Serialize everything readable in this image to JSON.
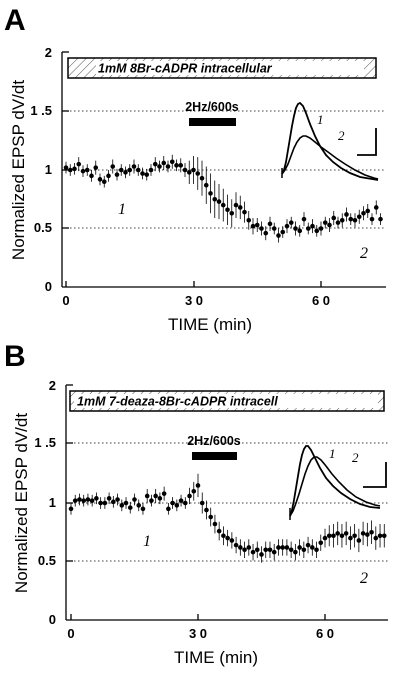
{
  "chart_data": [
    {
      "type": "scatter",
      "panel_label": "A",
      "condition_label": "1mM  8Br-cADPR  intracellular",
      "stimulus_label": "2Hz/600s",
      "stimulus_window": [
        29,
        39
      ],
      "xlabel": "TIME (min)",
      "ylabel": "Normalized EPSP  dV/dt",
      "xlim": [
        -1,
        75
      ],
      "ylim": [
        0,
        2
      ],
      "xticks": [
        0,
        30,
        60
      ],
      "xtick_labels": [
        "0",
        "3 0",
        "6 0"
      ],
      "yticks": [
        0,
        0.5,
        1,
        1.5,
        2
      ],
      "ytick_labels": [
        "0",
        "0.5",
        "1",
        "1 .5",
        "2"
      ],
      "gridlines_y": [
        0.5,
        1,
        1.5
      ],
      "phase_labels": [
        {
          "text": "1",
          "x": 12,
          "y": 0.77
        },
        {
          "text": "2",
          "x": 69,
          "y": 0.33
        }
      ],
      "inset_trace_labels": [
        "1",
        "2"
      ],
      "series": [
        {
          "x": [
            0,
            1,
            2,
            3,
            4,
            5,
            6,
            7,
            8,
            9,
            10,
            11,
            12,
            13,
            14,
            15,
            16,
            17,
            18,
            19,
            20,
            21,
            22,
            23,
            24,
            25,
            26,
            27,
            28,
            29,
            30,
            31,
            32,
            33,
            34,
            35,
            36,
            37,
            38,
            39,
            40,
            41,
            42,
            43,
            44,
            45,
            46,
            47,
            48,
            49,
            50,
            51,
            52,
            53,
            54,
            55,
            56,
            57,
            58,
            59,
            60,
            61,
            62,
            63,
            64,
            65,
            66,
            67,
            68,
            69,
            70,
            71,
            72,
            73,
            74
          ],
          "y": [
            1.02,
            1.0,
            1.01,
            1.05,
            0.99,
            1.0,
            0.95,
            1.02,
            0.92,
            0.9,
            0.95,
            1.03,
            0.96,
            1.0,
            0.98,
            1.0,
            1.03,
            1.0,
            0.97,
            0.96,
            1.0,
            1.05,
            1.03,
            1.06,
            1.03,
            1.07,
            1.04,
            1.04,
            1.0,
            0.98,
            1.0,
            0.97,
            0.93,
            0.87,
            0.8,
            0.75,
            0.73,
            0.7,
            0.66,
            0.63,
            0.7,
            0.68,
            0.64,
            0.57,
            0.52,
            0.53,
            0.5,
            0.46,
            0.54,
            0.5,
            0.44,
            0.47,
            0.52,
            0.55,
            0.5,
            0.48,
            0.58,
            0.5,
            0.52,
            0.48,
            0.5,
            0.55,
            0.53,
            0.59,
            0.55,
            0.57,
            0.62,
            0.58,
            0.57,
            0.6,
            0.63,
            0.65,
            0.58,
            0.68,
            0.58
          ],
          "err": [
            0.05,
            0.05,
            0.05,
            0.06,
            0.05,
            0.05,
            0.05,
            0.06,
            0.05,
            0.05,
            0.05,
            0.06,
            0.05,
            0.05,
            0.05,
            0.05,
            0.06,
            0.05,
            0.05,
            0.05,
            0.05,
            0.06,
            0.05,
            0.06,
            0.05,
            0.06,
            0.05,
            0.06,
            0.06,
            0.1,
            0.12,
            0.14,
            0.15,
            0.16,
            0.17,
            0.16,
            0.15,
            0.14,
            0.13,
            0.12,
            0.11,
            0.1,
            0.09,
            0.08,
            0.07,
            0.06,
            0.06,
            0.06,
            0.06,
            0.05,
            0.06,
            0.05,
            0.06,
            0.05,
            0.06,
            0.05,
            0.06,
            0.05,
            0.06,
            0.05,
            0.06,
            0.05,
            0.06,
            0.06,
            0.05,
            0.06,
            0.06,
            0.05,
            0.06,
            0.06,
            0.06,
            0.06,
            0.05,
            0.06,
            0.05
          ]
        }
      ]
    },
    {
      "type": "scatter",
      "panel_label": "B",
      "condition_label": "1mM  7-deaza-8Br-cADPR  intracell",
      "stimulus_label": "2Hz/600s",
      "stimulus_window": [
        29,
        39
      ],
      "xlabel": "TIME (min)",
      "ylabel": "Normalized EPSP  dV/dt",
      "xlim": [
        -1,
        75
      ],
      "ylim": [
        0,
        2
      ],
      "xticks": [
        0,
        30,
        60
      ],
      "xtick_labels": [
        "0",
        "3 0",
        "6 0"
      ],
      "yticks": [
        0,
        0.5,
        1,
        1.5,
        2
      ],
      "ytick_labels": [
        "0",
        "0.5",
        "1",
        "1 .5",
        "2"
      ],
      "gridlines_y": [
        0.5,
        1,
        1.5
      ],
      "phase_labels": [
        {
          "text": "1",
          "x": 12,
          "y": 0.76
        },
        {
          "text": "2",
          "x": 69,
          "y": 0.33
        }
      ],
      "inset_trace_labels": [
        "1",
        "2"
      ],
      "series": [
        {
          "x": [
            0,
            1,
            2,
            3,
            4,
            5,
            6,
            7,
            8,
            9,
            10,
            11,
            12,
            13,
            14,
            15,
            16,
            17,
            18,
            19,
            20,
            21,
            22,
            23,
            24,
            25,
            26,
            27,
            28,
            29,
            30,
            31,
            32,
            33,
            34,
            35,
            36,
            37,
            38,
            39,
            40,
            41,
            42,
            43,
            44,
            45,
            46,
            47,
            48,
            49,
            50,
            51,
            52,
            53,
            54,
            55,
            56,
            57,
            58,
            59,
            60,
            61,
            62,
            63,
            64,
            65,
            66,
            67,
            68,
            69,
            70,
            71,
            72,
            73,
            74
          ],
          "y": [
            0.95,
            1.02,
            1.03,
            1.02,
            1.03,
            1.02,
            1.04,
            1.0,
            1.0,
            1.04,
            1.01,
            1.03,
            0.98,
            1.0,
            0.96,
            1.03,
            0.98,
            0.95,
            1.06,
            1.02,
            1.06,
            1.04,
            1.08,
            0.95,
            1.0,
            0.98,
            1.02,
            1.0,
            1.06,
            1.1,
            1.15,
            1.0,
            0.94,
            0.88,
            0.82,
            0.76,
            0.72,
            0.7,
            0.68,
            0.64,
            0.62,
            0.6,
            0.62,
            0.58,
            0.6,
            0.56,
            0.6,
            0.6,
            0.58,
            0.62,
            0.62,
            0.62,
            0.6,
            0.58,
            0.62,
            0.6,
            0.64,
            0.62,
            0.6,
            0.66,
            0.7,
            0.72,
            0.72,
            0.74,
            0.72,
            0.74,
            0.7,
            0.72,
            0.68,
            0.74,
            0.73,
            0.75,
            0.7,
            0.72,
            0.72
          ],
          "err": [
            0.05,
            0.05,
            0.05,
            0.05,
            0.05,
            0.05,
            0.05,
            0.05,
            0.05,
            0.05,
            0.05,
            0.05,
            0.05,
            0.05,
            0.05,
            0.05,
            0.05,
            0.05,
            0.06,
            0.05,
            0.06,
            0.05,
            0.06,
            0.05,
            0.05,
            0.05,
            0.05,
            0.05,
            0.07,
            0.08,
            0.1,
            0.09,
            0.08,
            0.08,
            0.08,
            0.08,
            0.08,
            0.07,
            0.07,
            0.07,
            0.07,
            0.07,
            0.07,
            0.07,
            0.07,
            0.07,
            0.07,
            0.07,
            0.07,
            0.07,
            0.07,
            0.07,
            0.07,
            0.07,
            0.07,
            0.07,
            0.07,
            0.07,
            0.07,
            0.07,
            0.08,
            0.09,
            0.1,
            0.1,
            0.1,
            0.1,
            0.1,
            0.1,
            0.1,
            0.1,
            0.1,
            0.1,
            0.1,
            0.1,
            0.1
          ]
        }
      ]
    }
  ]
}
